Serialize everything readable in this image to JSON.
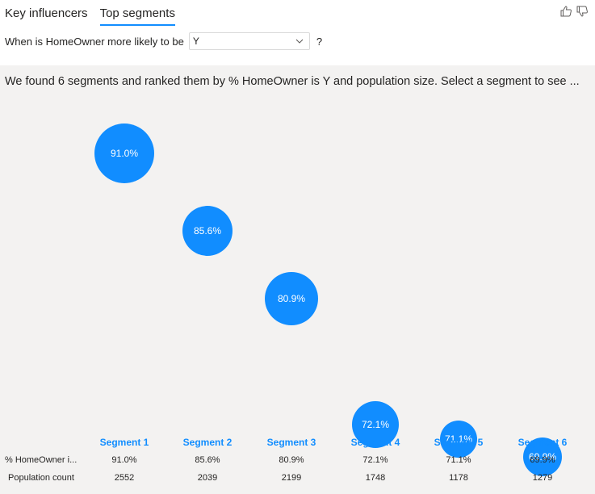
{
  "tabs": [
    {
      "label": "Key influencers",
      "active": false
    },
    {
      "label": "Top segments",
      "active": true
    }
  ],
  "question": {
    "prefix": "When is HomeOwner more likely to be",
    "selected_value": "Y",
    "suffix": "?"
  },
  "summary": "We found 6 segments and ranked them by % HomeOwner is Y and population size. Select a segment to see ...",
  "row_labels": {
    "percent": "% HomeOwner i...",
    "population": "Population count"
  },
  "segments": [
    {
      "name": "Segment 1",
      "percent_label": "91.0%",
      "percent": 91.0,
      "population": "2552"
    },
    {
      "name": "Segment 2",
      "percent_label": "85.6%",
      "percent": 85.6,
      "population": "2039"
    },
    {
      "name": "Segment 3",
      "percent_label": "80.9%",
      "percent": 80.9,
      "population": "2199"
    },
    {
      "name": "Segment 4",
      "percent_label": "72.1%",
      "percent": 72.1,
      "population": "1748"
    },
    {
      "name": "Segment 5",
      "percent_label": "71.1%",
      "percent": 71.1,
      "population": "1178"
    },
    {
      "name": "Segment 6",
      "percent_label": "69.9%",
      "percent": 69.9,
      "population": "1279"
    }
  ],
  "icons": {
    "thumbs_up": "thumbs-up-icon",
    "thumbs_down": "thumbs-down-icon",
    "dropdown": "chevron-down-icon"
  },
  "colors": {
    "accent": "#118dff",
    "panel_bg": "#f3f2f1"
  }
}
